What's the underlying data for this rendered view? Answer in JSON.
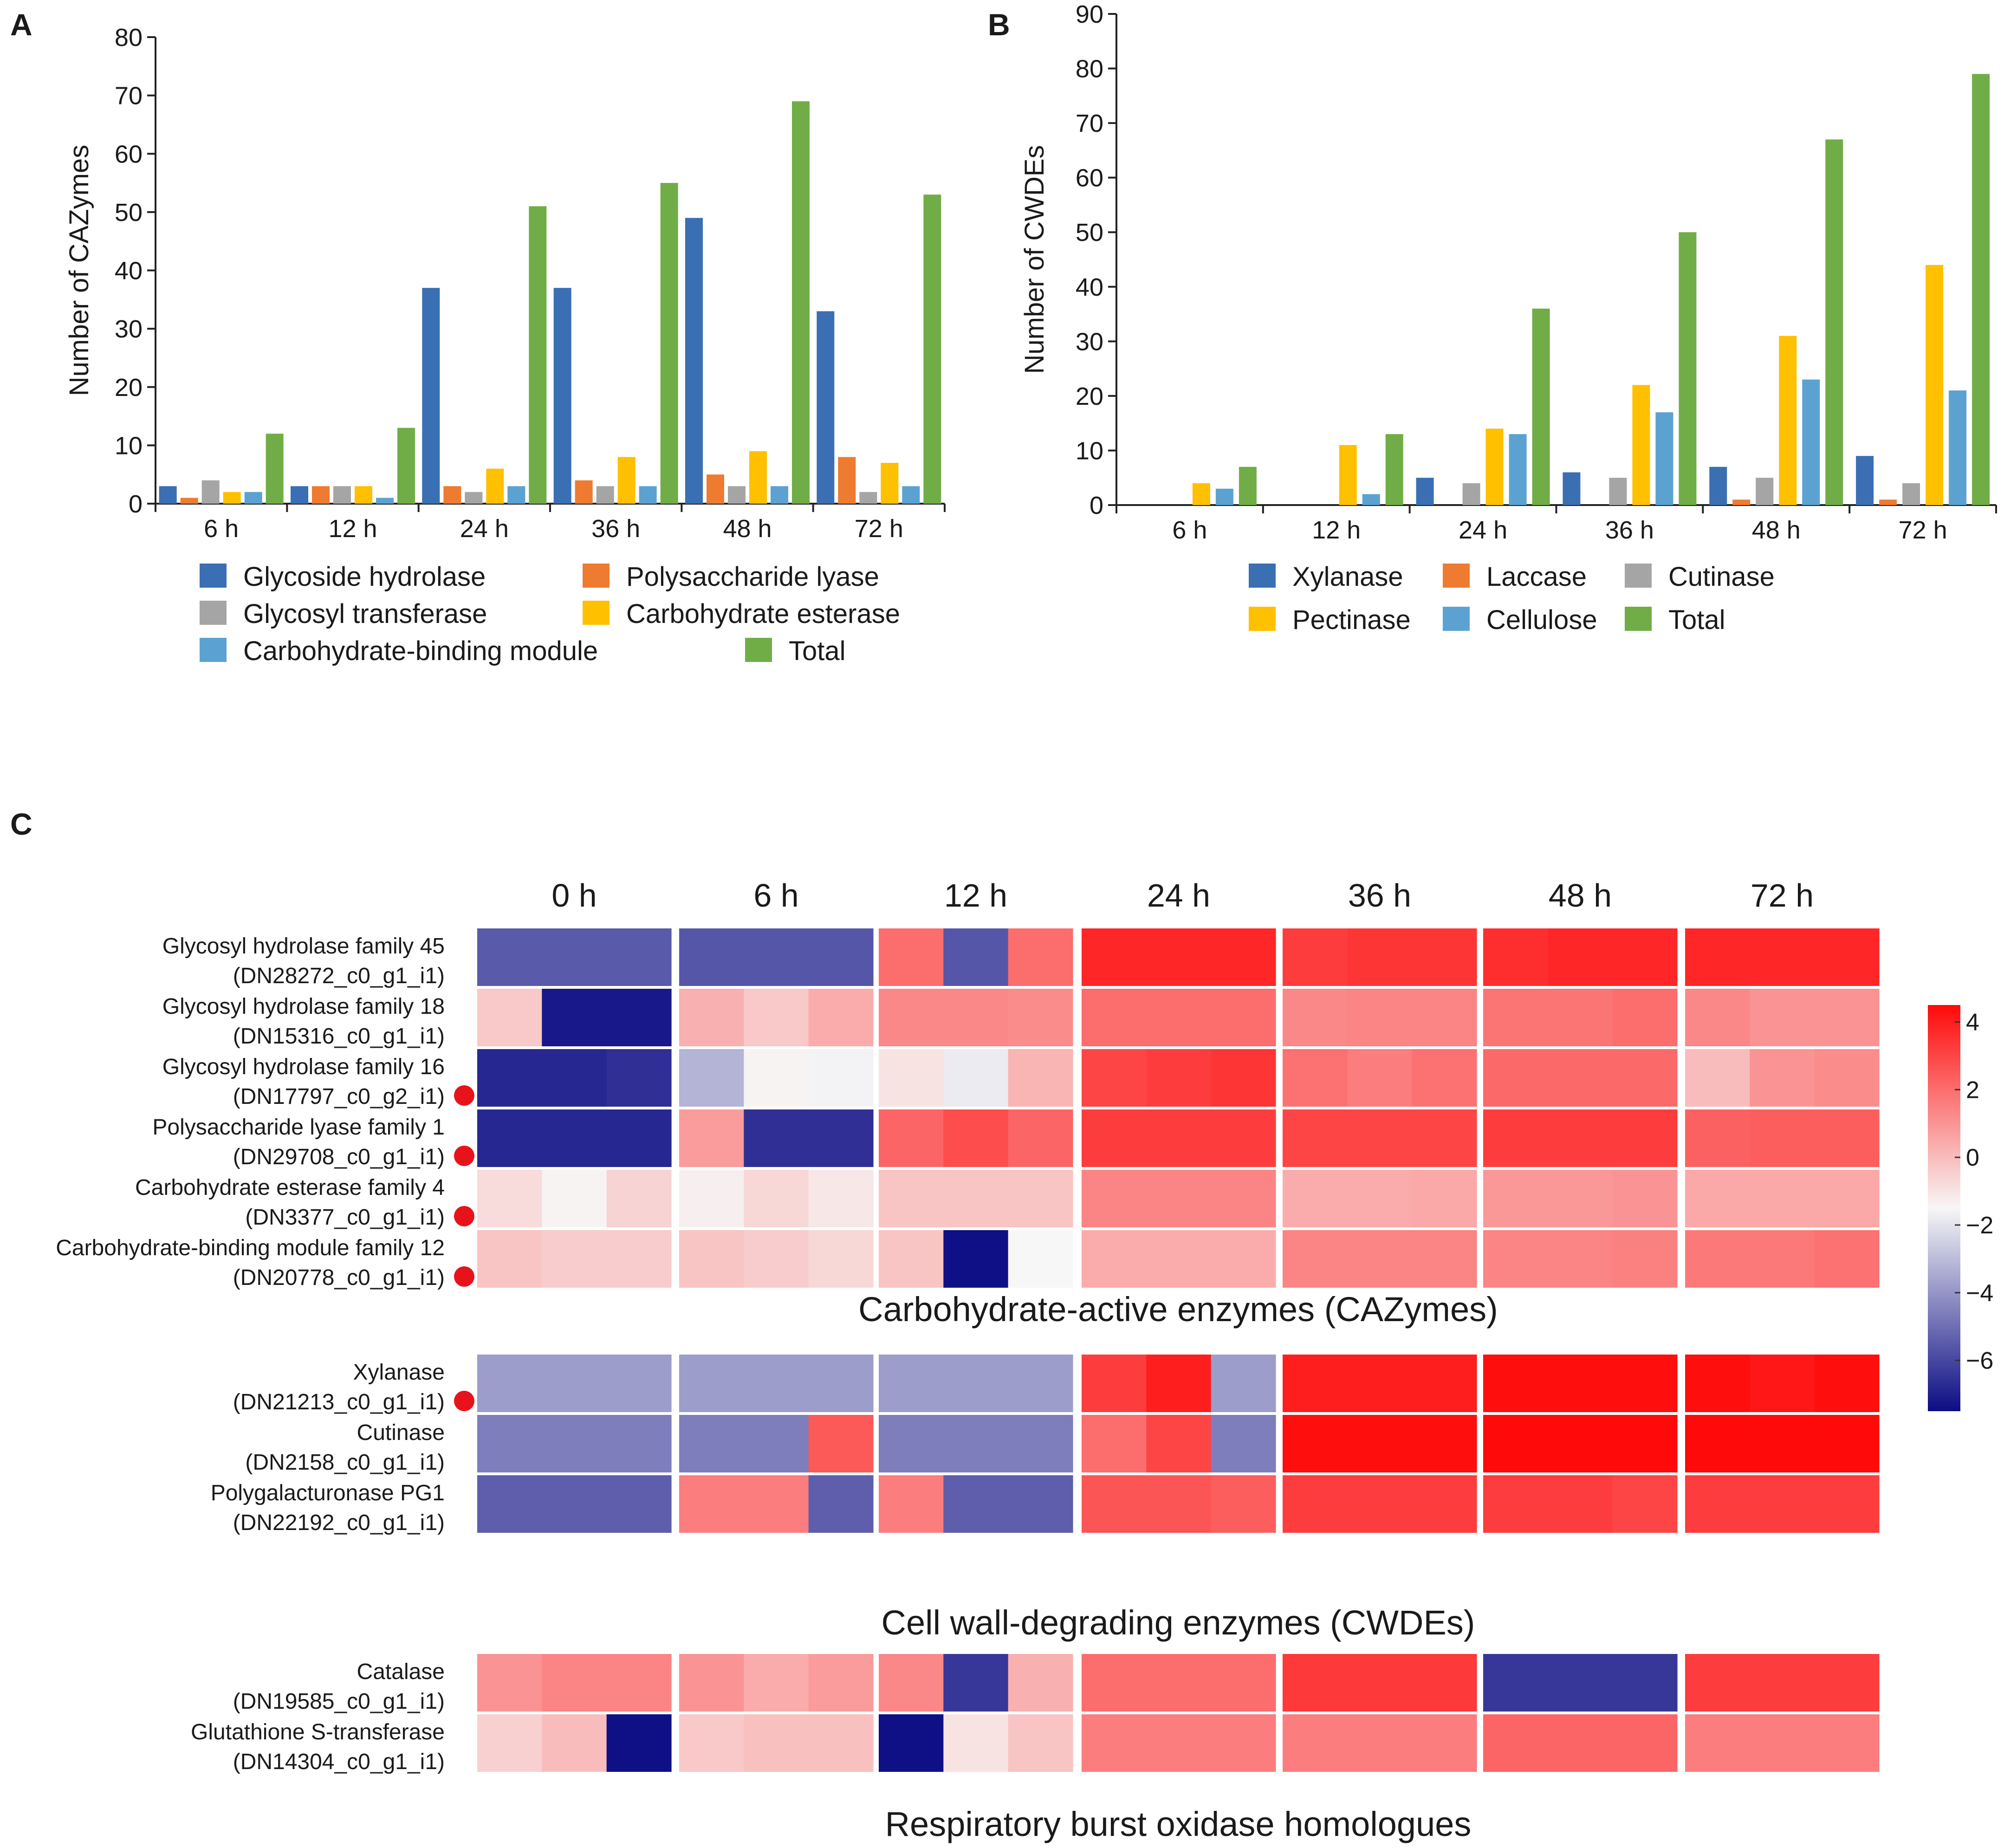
{
  "colors": {
    "blue": "#3a6fb3",
    "orange": "#ee7b30",
    "gray": "#a5a5a5",
    "yellow": "#ffc000",
    "lightblue": "#5ba2d2",
    "green": "#70ad47",
    "heat_low": "#0c0c84",
    "heat_mid": "#f7f7f7",
    "heat_high": "#ff0a0a",
    "marker_red": "#e8131a"
  },
  "chart_data": [
    {
      "panel": "A",
      "type": "bar",
      "title": "",
      "xlabel": "",
      "ylabel": "Number of CAZymes",
      "ylim": [
        0,
        80
      ],
      "yticks": [
        "0",
        "10",
        "20",
        "30",
        "40",
        "50",
        "60",
        "70",
        "80"
      ],
      "categories": [
        "6 h",
        "12 h",
        "24 h",
        "36 h",
        "48 h",
        "72 h"
      ],
      "legend_position": "bottom",
      "series": [
        {
          "name": "Glycoside hydrolase",
          "color": "blue",
          "values": [
            3,
            3,
            37,
            37,
            49,
            33
          ]
        },
        {
          "name": "Polysaccharide lyase",
          "color": "orange",
          "values": [
            1,
            3,
            3,
            4,
            5,
            8
          ]
        },
        {
          "name": "Glycosyl transferase",
          "color": "gray",
          "values": [
            4,
            3,
            2,
            3,
            3,
            2
          ]
        },
        {
          "name": "Carbohydrate esterase",
          "color": "yellow",
          "values": [
            2,
            3,
            6,
            8,
            9,
            7
          ]
        },
        {
          "name": "Carbohydrate-binding module",
          "color": "lightblue",
          "values": [
            2,
            1,
            3,
            3,
            3,
            3
          ]
        },
        {
          "name": "Total",
          "color": "green",
          "values": [
            12,
            13,
            51,
            55,
            69,
            53
          ]
        }
      ]
    },
    {
      "panel": "B",
      "type": "bar",
      "title": "",
      "xlabel": "",
      "ylabel": "Number of CWDEs",
      "ylim": [
        0,
        90
      ],
      "yticks": [
        "0",
        "10",
        "20",
        "30",
        "40",
        "50",
        "60",
        "70",
        "80",
        "90"
      ],
      "categories": [
        "6 h",
        "12 h",
        "24 h",
        "36 h",
        "48 h",
        "72 h"
      ],
      "legend_position": "bottom",
      "series": [
        {
          "name": "Xylanase",
          "color": "blue",
          "values": [
            0,
            0,
            5,
            6,
            7,
            9
          ]
        },
        {
          "name": "Laccase",
          "color": "orange",
          "values": [
            0,
            0,
            0,
            0,
            1,
            1
          ]
        },
        {
          "name": "Cutinase",
          "color": "gray",
          "values": [
            0,
            0,
            4,
            5,
            5,
            4
          ]
        },
        {
          "name": "Pectinase",
          "color": "yellow",
          "values": [
            4,
            11,
            14,
            22,
            31,
            44
          ]
        },
        {
          "name": "Cellulose",
          "color": "lightblue",
          "values": [
            3,
            2,
            13,
            17,
            23,
            21
          ]
        },
        {
          "name": "Total",
          "color": "green",
          "values": [
            7,
            13,
            36,
            50,
            67,
            79
          ]
        }
      ]
    },
    {
      "panel": "C",
      "type": "heatmap",
      "columns": [
        "0 h",
        "6 h",
        "12 h",
        "24 h",
        "36 h",
        "48 h",
        "72 h"
      ],
      "replicates_per_column": 3,
      "value_range": [
        -7.5,
        4.5
      ],
      "colorbar_ticks": [
        4,
        2,
        0,
        -2,
        -4,
        -6
      ],
      "colorbar_labels": [
        "4",
        "2",
        "0",
        "−2",
        "−4",
        "−6"
      ],
      "groups": [
        {
          "title": "Carbohydrate-active enzymes (CAZymes)",
          "rows": [
            {
              "name": "Glycosyl hydrolase family 45",
              "id": "(DN28272_c0_g1_i1)",
              "marker": false,
              "values": [
                -5.5,
                -5.5,
                -5.5,
                -5.6,
                -5.6,
                -5.6,
                2,
                -5.6,
                2,
                3.8,
                3.8,
                3.8,
                3.2,
                3.4,
                3.4,
                3.6,
                3.8,
                3.8,
                3.8,
                3.8,
                3.8
              ]
            },
            {
              "name": "Glycosyl hydrolase family 18",
              "id": "(DN15316_c0_g1_i1)",
              "marker": false,
              "values": [
                -0.3,
                -7.2,
                -7.2,
                0.3,
                -0.3,
                0.4,
                1.3,
                1.3,
                1.2,
                2.0,
                2.0,
                2.0,
                1.3,
                1.4,
                1.4,
                1.8,
                1.8,
                2.0,
                1.3,
                1.0,
                1.0
              ]
            },
            {
              "name": "Glycosyl hydrolase family 16",
              "id": "(DN17797_c0_g2_i1)",
              "marker": true,
              "values": [
                -6.8,
                -6.8,
                -6.6,
                -3.2,
                -1.4,
                -1.6,
                -1,
                -1.8,
                0.2,
                3.0,
                3.2,
                3.4,
                1.9,
                1.6,
                1.9,
                2.1,
                2.1,
                2.1,
                0,
                1.0,
                1.2
              ]
            },
            {
              "name": "Polysaccharide lyase family 1",
              "id": "(DN29708_c0_g1_i1)",
              "marker": true,
              "values": [
                -6.8,
                -6.8,
                -6.8,
                0.8,
                -6.6,
                -6.6,
                2.2,
                2.8,
                2.2,
                3.2,
                3.2,
                3.2,
                3.0,
                3.0,
                3.0,
                3.2,
                3.2,
                3.2,
                2.3,
                2.4,
                2.4
              ]
            },
            {
              "name": "Carbohydrate esterase family 4",
              "id": "(DN3377_c0_g1_i1)",
              "marker": true,
              "values": [
                -0.8,
                -1.4,
                -0.6,
                -1.3,
                -0.7,
                -1.1,
                -0.2,
                -0.2,
                -0.2,
                1.4,
                1.4,
                1.4,
                0.4,
                0.4,
                0.5,
                0.9,
                0.9,
                1.0,
                0.5,
                0.5,
                0.5
              ]
            },
            {
              "name": "Carbohydrate-binding module family 12",
              "id": "(DN20778_c0_g1_i1)",
              "marker": true,
              "values": [
                -0.2,
                -0.4,
                -0.4,
                -0.2,
                -0.4,
                -0.7,
                -0.2,
                -7.4,
                -1.5,
                0.4,
                0.4,
                0.4,
                1.4,
                1.4,
                1.4,
                1.4,
                1.4,
                1.5,
                1.7,
                1.7,
                1.9
              ]
            }
          ]
        },
        {
          "title": "Cell wall-degrading enzymes (CWDEs)",
          "rows": [
            {
              "name": "Xylanase",
              "id": "(DN21213_c0_g1_i1)",
              "marker": true,
              "values": [
                -3.8,
                -3.8,
                -3.8,
                -3.8,
                -3.8,
                -3.8,
                -3.8,
                -3.8,
                -3.8,
                3.2,
                4.0,
                -3.8,
                4.0,
                4.0,
                4.0,
                4.4,
                4.4,
                4.4,
                4.4,
                4.2,
                4.4
              ]
            },
            {
              "name": "Cutinase",
              "id": "(DN2158_c0_g1_i1)",
              "marker": false,
              "values": [
                -4.6,
                -4.6,
                -4.6,
                -4.6,
                -4.6,
                2.5,
                -4.6,
                -4.6,
                -4.6,
                2.0,
                3.0,
                -4.6,
                4.4,
                4.4,
                4.4,
                4.5,
                4.5,
                4.5,
                4.5,
                4.5,
                4.5
              ]
            },
            {
              "name": "Polygalacturonase PG1",
              "id": "(DN22192_c0_g1_i1)",
              "marker": false,
              "values": [
                -5.4,
                -5.4,
                -5.4,
                1.6,
                1.6,
                -5.4,
                1.6,
                -5.4,
                -5.4,
                2.6,
                2.6,
                2.4,
                3.2,
                3.2,
                3.2,
                3.2,
                3.2,
                3.0,
                3.2,
                3.2,
                3.2
              ]
            }
          ]
        },
        {
          "title": "Respiratory burst oxidase homologues",
          "rows": [
            {
              "name": "Catalase",
              "id": "(DN19585_c0_g1_i1)",
              "marker": false,
              "values": [
                1.0,
                1.4,
                1.4,
                1.0,
                0.4,
                0.8,
                1.3,
                -6.4,
                0.3,
                2.0,
                2.0,
                2.0,
                3.3,
                3.3,
                3.3,
                -6.4,
                -6.4,
                -6.4,
                3.2,
                3.2,
                3.2
              ]
            },
            {
              "name": "Glutathione S-transferase",
              "id": "(DN14304_c0_g1_i1)",
              "marker": false,
              "values": [
                -0.5,
                0,
                -7.4,
                -0.3,
                -0.1,
                -0.1,
                -7.4,
                -1.0,
                -0.2,
                1.6,
                1.6,
                1.6,
                1.6,
                1.6,
                1.6,
                2.2,
                2.2,
                2.2,
                1.6,
                1.6,
                1.6
              ]
            }
          ]
        }
      ]
    }
  ]
}
